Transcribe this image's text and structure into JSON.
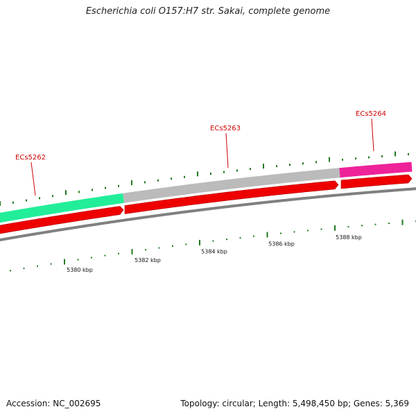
{
  "title": "Escherichia coli O157:H7 str. Sakai, complete genome",
  "footer": {
    "accession": "Accession: NC_002695",
    "summary": "Topology: circular; Length: 5,498,450 bp; Genes: 5,369"
  },
  "colors": {
    "label": "#cc0000",
    "tick": "#1f7a1f",
    "cds": "#ee0000",
    "backbone": "#808080"
  },
  "genes": [
    {
      "name": "ECs5262",
      "color": "#22ee99"
    },
    {
      "name": "ECs5263",
      "color": "#bbbbbb"
    },
    {
      "name": "ECs5264",
      "color": "#ee2299"
    }
  ],
  "ruler": [
    {
      "label": "5380 kbp"
    },
    {
      "label": "5382 kbp"
    },
    {
      "label": "5384 kbp"
    },
    {
      "label": "5386 kbp"
    },
    {
      "label": "5388 kbp"
    }
  ]
}
